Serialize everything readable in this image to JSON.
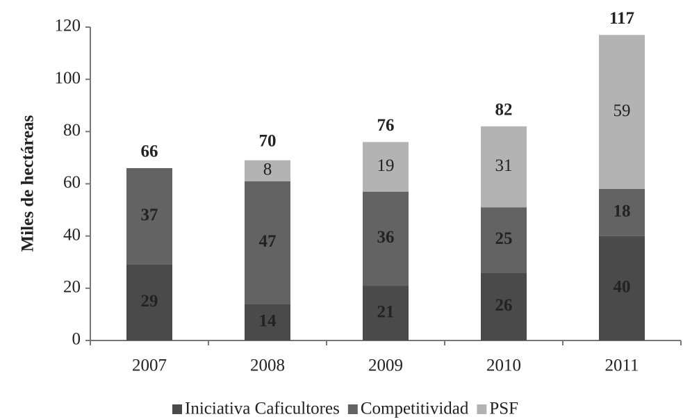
{
  "chart_data": {
    "type": "stacked_bar",
    "y_label": "Miles de hectáreas",
    "categories": [
      "2007",
      "2008",
      "2009",
      "2010",
      "2011"
    ],
    "series": [
      {
        "name": "Iniciativa Caficultores",
        "color": "#4a4a4a",
        "values": [
          29,
          14,
          21,
          26,
          40
        ]
      },
      {
        "name": "Competitividad",
        "color": "#636363",
        "values": [
          37,
          47,
          36,
          25,
          18
        ]
      },
      {
        "name": "PSF",
        "color": "#b3b3b3",
        "values": [
          null,
          8,
          19,
          31,
          59
        ]
      }
    ],
    "totals": [
      66,
      70,
      76,
      82,
      117
    ],
    "ylim": [
      0,
      120
    ],
    "yticks": [
      0,
      20,
      40,
      60,
      80,
      100,
      120
    ],
    "grid": false,
    "legend": "bottom"
  }
}
